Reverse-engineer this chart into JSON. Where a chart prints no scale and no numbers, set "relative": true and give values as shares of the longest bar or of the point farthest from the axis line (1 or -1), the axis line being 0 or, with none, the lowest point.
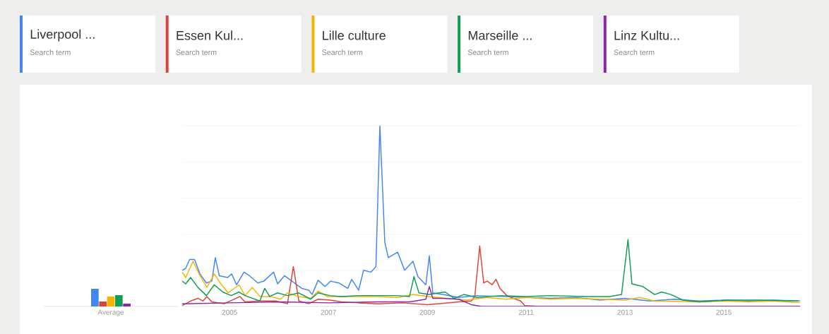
{
  "chart_data": [
    {
      "type": "bar",
      "relative": true,
      "categories": [
        "Average"
      ],
      "series": [
        {
          "color": "#4285f4",
          "values": [
            1
          ]
        },
        {
          "color": "#db4437",
          "values": [
            0.28
          ]
        },
        {
          "color": "#f4b400",
          "values": [
            0.56
          ]
        },
        {
          "color": "#0f9d58",
          "values": [
            0.64
          ]
        },
        {
          "color": "#8e24aa",
          "values": [
            0.16
          ]
        }
      ]
    },
    {
      "type": "line",
      "relative": true,
      "grid": "y",
      "legend": "top",
      "xlim": [
        2004.04,
        2016.57
      ],
      "xticks": [
        2005,
        2007,
        2009,
        2011,
        2013,
        2015
      ],
      "annotations": [
        "Search term",
        "Search term",
        "Search term",
        "Search term",
        "Search term"
      ],
      "series": [
        {
          "name": "Liverpool ...",
          "color": "#4285f4",
          "x": [
            2004.04,
            2004.11,
            2004.19,
            2004.29,
            2004.4,
            2004.53,
            2004.64,
            2004.71,
            2004.79,
            2004.96,
            2005.04,
            2005.14,
            2005.29,
            2005.4,
            2005.57,
            2005.69,
            2005.89,
            2005.97,
            2006.11,
            2006.26,
            2006.46,
            2006.6,
            2006.67,
            2006.79,
            2006.93,
            2007.04,
            2007.21,
            2007.39,
            2007.47,
            2007.61,
            2007.71,
            2007.86,
            2007.96,
            2008.04,
            2008.14,
            2008.21,
            2008.4,
            2008.54,
            2008.71,
            2008.81,
            2008.97,
            2009.04,
            2009.11,
            2009.31,
            2009.64,
            2010.0,
            2010.5,
            2011.0,
            2011.5,
            2012.0,
            2012.5,
            2013.0,
            2013.5,
            2014.0,
            2014.5,
            2015.0,
            2015.5,
            2016.0,
            2016.54
          ],
          "values": [
            0.2,
            0.21,
            0.26,
            0.26,
            0.18,
            0.13,
            0.14,
            0.27,
            0.17,
            0.16,
            0.18,
            0.12,
            0.19,
            0.17,
            0.13,
            0.14,
            0.19,
            0.125,
            0.17,
            0.14,
            0.1,
            0.09,
            0.066,
            0.145,
            0.11,
            0.14,
            0.13,
            0.1,
            0.15,
            0.09,
            0.2,
            0.19,
            0.22,
            1.0,
            0.355,
            0.27,
            0.3,
            0.2,
            0.25,
            0.165,
            0.12,
            0.28,
            0.075,
            0.066,
            0.05,
            0.06,
            null,
            null,
            0.045,
            0.05,
            0.035,
            0.045,
            0.03,
            0.04,
            0.03,
            0.035,
            0.03,
            0.035,
            0.03
          ]
        },
        {
          "name": "Essen Kul...",
          "color": "#db4437",
          "x": [
            2004.04,
            2004.21,
            2004.36,
            2004.46,
            2004.54,
            2004.64,
            2004.89,
            2005.21,
            2005.31,
            2005.6,
            2005.93,
            2006.17,
            2006.29,
            2006.4,
            2006.6,
            2006.79,
            2007.03,
            2007.26,
            2007.6,
            2008.0,
            2008.5,
            2009.0,
            2009.21,
            2009.64,
            2009.89,
            2009.96,
            2010.06,
            2010.14,
            2010.21,
            2010.31,
            2010.39,
            2010.47,
            2010.61,
            2010.74,
            2010.89,
            2010.97,
            2011.3,
            2016.54
          ],
          "values": [
            0.005,
            0.03,
            0.045,
            0.03,
            0.055,
            0.025,
            0.015,
            0.055,
            0.025,
            0.03,
            0.03,
            0.015,
            0.22,
            0.03,
            0.015,
            0.04,
            0.035,
            0.025,
            0.02,
            0.015,
            0.02,
            0.01,
            0.015,
            0.025,
            0.03,
            0.055,
            0.335,
            0.13,
            0.14,
            0.12,
            0.15,
            0.1,
            0.06,
            0.045,
            0.03,
            0.005,
            0,
            0
          ]
        },
        {
          "name": "Lille culture",
          "color": "#f4b400",
          "x": [
            2004.04,
            2004.11,
            2004.26,
            2004.4,
            2004.54,
            2004.69,
            2004.81,
            2004.97,
            2005.19,
            2005.31,
            2005.46,
            2005.61,
            2005.83,
            2006.03,
            2006.17,
            2006.4,
            2006.64,
            2006.79,
            2006.97,
            2007.26,
            2007.6,
            2008.0,
            2008.4,
            2008.71,
            2009.03,
            2009.4,
            2009.8,
            2010.2,
            2010.6,
            2011.0,
            2011.5,
            2012.0,
            2012.5,
            2013.0,
            2013.3,
            2013.6,
            2014.0,
            2014.5,
            2015.0,
            2015.5,
            2016.0,
            2016.54
          ],
          "values": [
            0.19,
            0.16,
            0.25,
            0.17,
            0.105,
            0.18,
            0.13,
            0.075,
            0.12,
            0.06,
            0.105,
            0.055,
            0.055,
            0.04,
            0.075,
            0.055,
            0.045,
            0.085,
            0.055,
            0.055,
            0.055,
            0.055,
            0.05,
            0.066,
            0.055,
            0.045,
            0.035,
            0.05,
            0.04,
            0.05,
            0.04,
            0.045,
            0.04,
            0.035,
            0.05,
            0.03,
            null,
            0.025,
            0.03,
            0.025,
            0.03,
            0.02
          ]
        },
        {
          "name": "Marseille ...",
          "color": "#0f9d58",
          "x": [
            2004.04,
            2004.11,
            2004.21,
            2004.36,
            2004.53,
            2004.69,
            2004.86,
            2005.03,
            2005.19,
            2005.31,
            2005.61,
            2005.71,
            2005.81,
            2005.97,
            2006.17,
            2006.4,
            2006.64,
            2006.79,
            2007.03,
            2007.26,
            2007.6,
            2008.0,
            2008.4,
            2008.64,
            2008.73,
            2008.83,
            2009.03,
            2009.36,
            2009.54,
            2009.74,
            2010.0,
            2010.5,
            2011.0,
            2011.5,
            2012.21,
            2012.69,
            2012.93,
            2013.06,
            2013.14,
            2013.36,
            2013.6,
            2013.74,
            2013.93,
            2014.17,
            2014.5,
            2015.07,
            2015.71,
            2016.5
          ],
          "values": [
            0.14,
            0.125,
            0.16,
            0.105,
            0.06,
            0.12,
            0.08,
            0.06,
            0.08,
            0.06,
            0.03,
            0.1,
            0.055,
            0.075,
            0.06,
            0.075,
            0.04,
            0.075,
            0.06,
            0.055,
            0.06,
            0.06,
            0.06,
            0.055,
            0.165,
            0.075,
            0.066,
            0.08,
            0.045,
            0.066,
            0.05,
            0.06,
            0.055,
            0.06,
            0.055,
            0.055,
            0.066,
            0.37,
            0.125,
            0.11,
            0.066,
            0.08,
            0.066,
            0.035,
            0.025,
            0.035,
            0.035,
            0.03
          ]
        },
        {
          "name": "Linz Kultu...",
          "color": "#8e24aa",
          "x": [
            2004.04,
            2005.0,
            2006.0,
            2007.0,
            2008.0,
            2008.64,
            2008.97,
            2009.04,
            2009.11,
            2009.3,
            2009.64,
            2009.89,
            2010.1,
            2016.54
          ],
          "values": [
            0.015,
            0.02,
            0.025,
            0.02,
            0.025,
            0.025,
            0.04,
            0.11,
            0.045,
            0.045,
            0.04,
            0.01,
            0,
            0
          ]
        }
      ]
    }
  ]
}
